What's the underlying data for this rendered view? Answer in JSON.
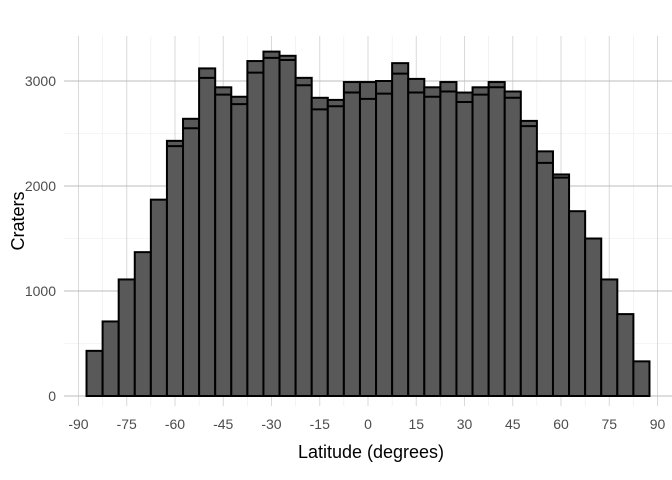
{
  "chart_data": {
    "type": "bar",
    "subtype": "histogram",
    "xlabel": "Latitude (degrees)",
    "ylabel": "Craters",
    "xlim": [
      -94.5,
      94.5
    ],
    "ylim": [
      0,
      3400
    ],
    "bin_width": 5,
    "x_ticks": [
      -90,
      -75,
      -60,
      -45,
      -30,
      -15,
      0,
      15,
      30,
      45,
      60,
      75,
      90
    ],
    "y_ticks": [
      0,
      1000,
      2000,
      3000
    ],
    "grid": true,
    "bar_fill": "#595959",
    "bar_outline": "#000000",
    "bins": [
      {
        "x": -85,
        "total": 430,
        "inner": 430
      },
      {
        "x": -80,
        "total": 710,
        "inner": 710
      },
      {
        "x": -75,
        "total": 1110,
        "inner": 1110
      },
      {
        "x": -70,
        "total": 1370,
        "inner": 1370
      },
      {
        "x": -65,
        "total": 1870,
        "inner": 1870
      },
      {
        "x": -60,
        "total": 2430,
        "inner": 2380
      },
      {
        "x": -55,
        "total": 2640,
        "inner": 2550
      },
      {
        "x": -50,
        "total": 3120,
        "inner": 3030
      },
      {
        "x": -45,
        "total": 2940,
        "inner": 2870
      },
      {
        "x": -40,
        "total": 2850,
        "inner": 2780
      },
      {
        "x": -35,
        "total": 3190,
        "inner": 3080
      },
      {
        "x": -30,
        "total": 3280,
        "inner": 3220
      },
      {
        "x": -25,
        "total": 3240,
        "inner": 3200
      },
      {
        "x": -20,
        "total": 3030,
        "inner": 2960
      },
      {
        "x": -15,
        "total": 2840,
        "inner": 2730
      },
      {
        "x": -10,
        "total": 2820,
        "inner": 2760
      },
      {
        "x": -5,
        "total": 2990,
        "inner": 2890
      },
      {
        "x": 0,
        "total": 2990,
        "inner": 2830
      },
      {
        "x": 5,
        "total": 3000,
        "inner": 2880
      },
      {
        "x": 10,
        "total": 3170,
        "inner": 3070
      },
      {
        "x": 15,
        "total": 3020,
        "inner": 2890
      },
      {
        "x": 20,
        "total": 2940,
        "inner": 2850
      },
      {
        "x": 25,
        "total": 2990,
        "inner": 2900
      },
      {
        "x": 30,
        "total": 2890,
        "inner": 2800
      },
      {
        "x": 35,
        "total": 2940,
        "inner": 2870
      },
      {
        "x": 40,
        "total": 2990,
        "inner": 2940
      },
      {
        "x": 45,
        "total": 2900,
        "inner": 2840
      },
      {
        "x": 50,
        "total": 2620,
        "inner": 2570
      },
      {
        "x": 55,
        "total": 2330,
        "inner": 2220
      },
      {
        "x": 60,
        "total": 2110,
        "inner": 2080
      },
      {
        "x": 65,
        "total": 1760,
        "inner": 1760
      },
      {
        "x": 70,
        "total": 1500,
        "inner": 1500
      },
      {
        "x": 75,
        "total": 1110,
        "inner": 1110
      },
      {
        "x": 80,
        "total": 780,
        "inner": 780
      },
      {
        "x": 85,
        "total": 330,
        "inner": 330
      }
    ]
  }
}
